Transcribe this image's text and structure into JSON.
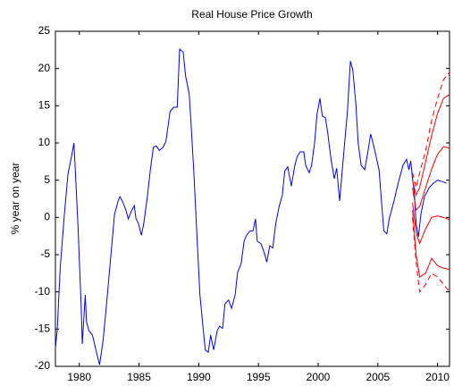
{
  "chart_data": {
    "type": "line",
    "title": "Real House Price Growth",
    "y_label": "% year on year",
    "xlim": [
      1978,
      2011
    ],
    "xticks": [
      1980,
      1985,
      1990,
      1995,
      2000,
      2005,
      2010
    ],
    "ylim": [
      -20,
      25
    ],
    "yticks": [
      -20,
      -15,
      -10,
      -5,
      0,
      5,
      10,
      15,
      20,
      25
    ],
    "grid": false,
    "series": [
      {
        "color": "#0000ff",
        "dashed": false,
        "x": [
          1978.0,
          1978.15,
          1978.4,
          1978.75,
          1979.05,
          1979.35,
          1979.55,
          1979.7,
          1979.9,
          1980.0,
          1980.15,
          1980.25,
          1980.5,
          1980.6,
          1980.8,
          1981.1,
          1981.45,
          1981.7,
          1982.0,
          1982.25,
          1982.65,
          1982.95,
          1983.25,
          1983.4,
          1983.6,
          1983.9,
          1984.1,
          1984.35,
          1984.6,
          1984.75,
          1984.95,
          1985.2,
          1985.4,
          1985.7,
          1985.95,
          1986.2,
          1986.45,
          1986.7,
          1987.0,
          1987.25,
          1987.6,
          1987.9,
          1988.2,
          1988.4,
          1988.7,
          1988.9,
          1989.2,
          1989.35,
          1989.6,
          1989.8,
          1990.1,
          1990.35,
          1990.55,
          1990.8,
          1991.0,
          1991.25,
          1991.55,
          1991.75,
          1992.0,
          1992.2,
          1992.5,
          1992.75,
          1993.05,
          1993.25,
          1993.55,
          1993.8,
          1994.0,
          1994.3,
          1994.55,
          1994.75,
          1994.9,
          1995.2,
          1995.5,
          1995.7,
          1995.95,
          1996.2,
          1996.45,
          1996.75,
          1997.0,
          1997.2,
          1997.45,
          1997.75,
          1998.05,
          1998.25,
          1998.5,
          1998.8,
          1998.95,
          1999.25,
          1999.45,
          1999.7,
          1999.9,
          2000.15,
          2000.35,
          2000.6,
          2000.8,
          2000.95,
          2001.1,
          2001.35,
          2001.55,
          2001.8,
          2002.0,
          2002.25,
          2002.45,
          2002.7,
          2002.9,
          2003.15,
          2003.35,
          2003.6,
          2003.9,
          2004.1,
          2004.4,
          2004.65,
          2004.85,
          2005.1,
          2005.3,
          2005.5,
          2005.75,
          2005.95,
          2006.35,
          2006.7,
          2007.1,
          2007.4,
          2007.6,
          2007.75,
          2007.9,
          2008.05,
          2008.2,
          2008.4,
          2008.6,
          2008.9,
          2009.3,
          2009.65,
          2010.0,
          2010.4,
          2010.75
        ],
        "values": [
          -17.5,
          -15.2,
          -6.8,
          0.4,
          5.8,
          8.2,
          10.0,
          5.2,
          -1.4,
          -5.6,
          -11.6,
          -17,
          -10.4,
          -14,
          -15.2,
          -15.8,
          -18.2,
          -19.8,
          -16.4,
          -12.2,
          -5,
          0.4,
          2.2,
          2.8,
          2.2,
          1,
          -0.2,
          0.8,
          1.6,
          -0.2,
          -0.8,
          -2.4,
          -0.8,
          2.8,
          6.4,
          9.4,
          9.6,
          9,
          9.4,
          10.2,
          14.2,
          14.8,
          14.8,
          22.6,
          22.2,
          19,
          16.6,
          12.8,
          5.8,
          -0.8,
          -10.4,
          -14.6,
          -17.8,
          -18.1,
          -15.8,
          -17.8,
          -15.2,
          -14.6,
          -14.9,
          -11.6,
          -11.1,
          -12.2,
          -10.4,
          -7.4,
          -6.2,
          -3.2,
          -2.4,
          -1.8,
          -1.8,
          -0.2,
          -3.2,
          -3.5,
          -4.8,
          -6,
          -3.8,
          -4.1,
          -0.8,
          1.6,
          3,
          6.2,
          6.8,
          4.2,
          7,
          8.2,
          8.8,
          8.8,
          7,
          6,
          7,
          10,
          13.8,
          16,
          13.6,
          13.4,
          11.4,
          9.4,
          7.6,
          5.2,
          6.6,
          2.2,
          6,
          10.6,
          14.2,
          21,
          19.8,
          15.4,
          10,
          7,
          6.4,
          8.2,
          11.2,
          9.6,
          8.2,
          6.4,
          2.2,
          -1.8,
          -2.2,
          -0.2,
          2.2,
          4.6,
          7,
          7.8,
          6.4,
          7.6,
          5.2,
          3.4,
          -0.8,
          -2.6,
          0.4,
          2.8,
          4,
          4.6,
          5,
          4.8,
          4.6
        ]
      },
      {
        "color": "#ff0000",
        "dashed": true,
        "x": [
          2007.9,
          2008.2,
          2008.5,
          2009,
          2009.5,
          2010,
          2010.5,
          2011
        ],
        "values": [
          6,
          4,
          6,
          9,
          13,
          16,
          18.5,
          19.5
        ]
      },
      {
        "color": "#ff0000",
        "dashed": false,
        "x": [
          2007.9,
          2008.2,
          2008.5,
          2009,
          2009.5,
          2010,
          2010.5,
          2011
        ],
        "values": [
          5,
          3,
          4,
          7.5,
          11,
          14,
          16,
          16.5
        ]
      },
      {
        "color": "#ff0000",
        "dashed": false,
        "x": [
          2007.9,
          2008.2,
          2008.5,
          2009,
          2009.5,
          2010,
          2010.5,
          2011
        ],
        "values": [
          4,
          1,
          1.5,
          4,
          6.5,
          8.5,
          9.5,
          9.3
        ]
      },
      {
        "color": "#ff0000",
        "dashed": false,
        "x": [
          2007.9,
          2008.2,
          2008.5,
          2009,
          2009.5,
          2010,
          2010.5,
          2011
        ],
        "values": [
          2,
          -2,
          -3.5,
          -1.5,
          0,
          0.2,
          0,
          -0.3
        ]
      },
      {
        "color": "#ff0000",
        "dashed": false,
        "x": [
          2007.9,
          2008.2,
          2008.5,
          2009,
          2009.5,
          2010,
          2010.5,
          2011
        ],
        "values": [
          1,
          -5,
          -8,
          -7.5,
          -5.5,
          -6.5,
          -6.8,
          -7
        ]
      },
      {
        "color": "#ff0000",
        "dashed": true,
        "x": [
          2007.9,
          2008.2,
          2008.5,
          2009,
          2009.5,
          2010,
          2010.5,
          2011
        ],
        "values": [
          0,
          -6,
          -10,
          -9,
          -7.5,
          -8,
          -9,
          -10
        ]
      }
    ]
  }
}
